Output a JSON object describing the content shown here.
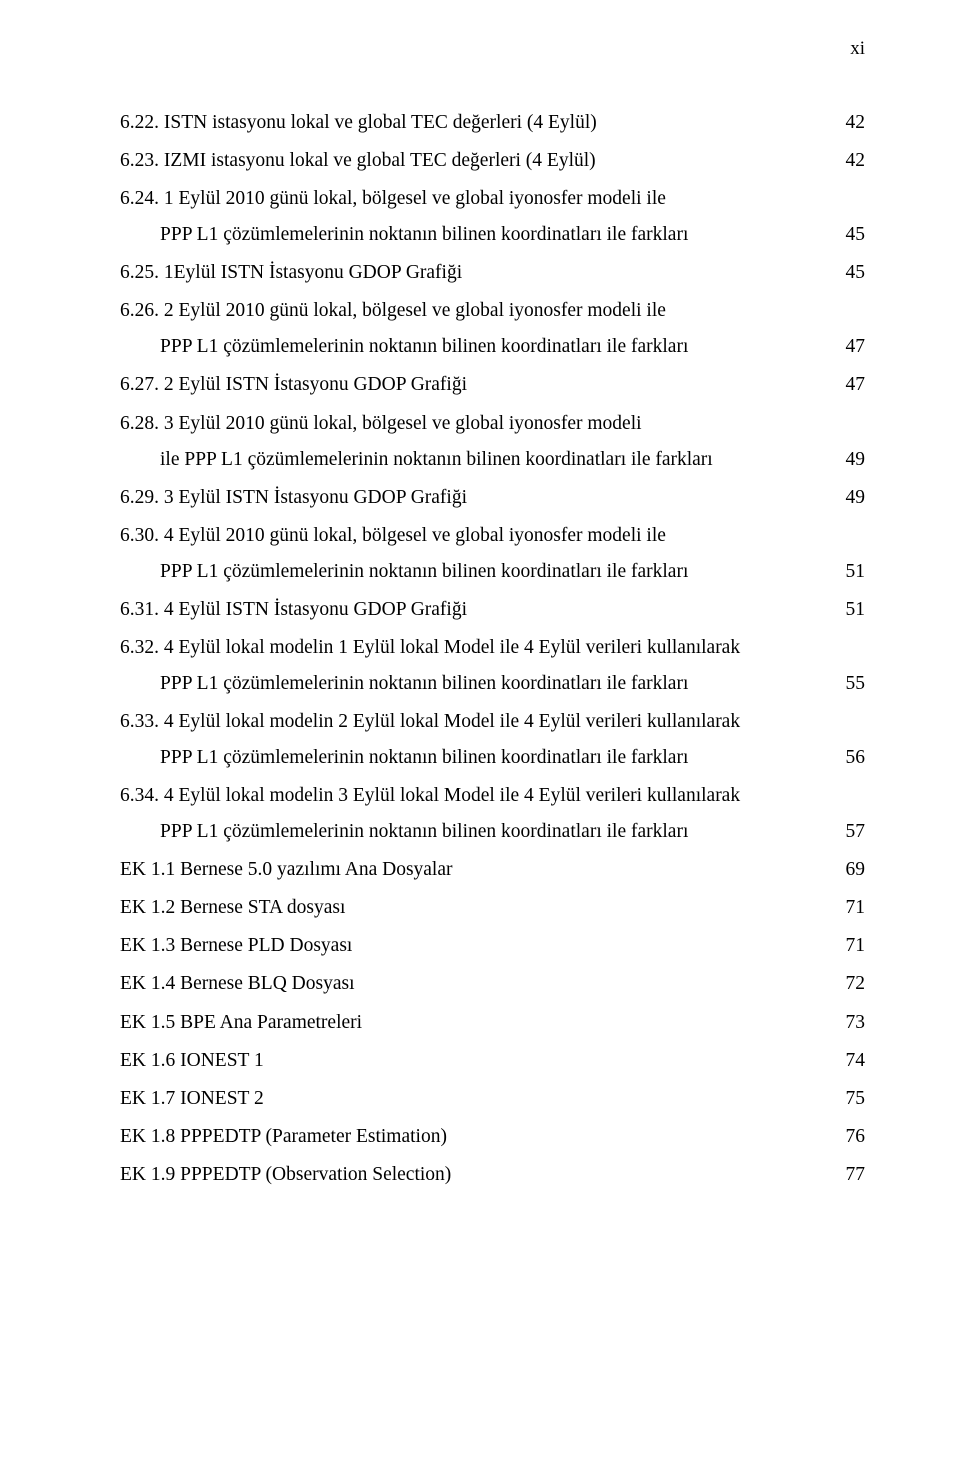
{
  "page_number_label": "xi",
  "text_color": "#000000",
  "background_color": "#ffffff",
  "font_family": "Times New Roman",
  "font_size_pt": 15,
  "entries": [
    {
      "id": "e622",
      "type": "single",
      "text": "6.22. ISTN istasyonu lokal ve global TEC değerleri (4 Eylül)",
      "page": "42"
    },
    {
      "id": "e623",
      "type": "single",
      "text": "6.23. IZMI istasyonu lokal ve global TEC değerleri (4 Eylül)",
      "page": "42"
    },
    {
      "id": "e624",
      "type": "multi",
      "line1": "6.24. 1 Eylül 2010 günü lokal, bölgesel ve global iyonosfer modeli ile",
      "line2": "PPP L1 çözümlemelerinin noktanın bilinen koordinatları ile farkları",
      "page": "45"
    },
    {
      "id": "e625",
      "type": "single",
      "text": "6.25. 1Eylül ISTN İstasyonu GDOP Grafiği",
      "page": "45"
    },
    {
      "id": "e626",
      "type": "multi",
      "line1": "6.26. 2 Eylül 2010 günü lokal, bölgesel ve global iyonosfer modeli ile",
      "line2": "PPP L1 çözümlemelerinin noktanın bilinen koordinatları ile farkları",
      "page": "47"
    },
    {
      "id": "e627",
      "type": "single",
      "text": "6.27. 2 Eylül ISTN İstasyonu GDOP Grafiği",
      "page": "47"
    },
    {
      "id": "e628",
      "type": "multi",
      "line1": "6.28. 3 Eylül 2010 günü lokal, bölgesel ve global iyonosfer modeli",
      "line2": "ile PPP L1 çözümlemelerinin noktanın bilinen koordinatları ile farkları",
      "page": "49"
    },
    {
      "id": "e629",
      "type": "single",
      "text": "6.29. 3 Eylül ISTN İstasyonu GDOP Grafiği",
      "page": "49"
    },
    {
      "id": "e630",
      "type": "multi",
      "line1": "6.30. 4 Eylül 2010 günü lokal, bölgesel ve global iyonosfer modeli ile",
      "line2": "PPP L1 çözümlemelerinin noktanın bilinen koordinatları ile farkları",
      "page": "51"
    },
    {
      "id": "e631",
      "type": "single",
      "text": "6.31. 4 Eylül ISTN İstasyonu GDOP Grafiği",
      "page": "51"
    },
    {
      "id": "e632",
      "type": "multi",
      "line1": "6.32. 4 Eylül lokal modelin 1 Eylül lokal Model ile 4 Eylül verileri kullanılarak",
      "line2": "PPP L1 çözümlemelerinin noktanın bilinen koordinatları ile farkları",
      "page": "55"
    },
    {
      "id": "e633",
      "type": "multi",
      "line1": "6.33. 4 Eylül lokal modelin 2 Eylül lokal Model ile 4 Eylül verileri kullanılarak",
      "line2": "PPP L1 çözümlemelerinin noktanın bilinen koordinatları ile farkları",
      "page": "56"
    },
    {
      "id": "e634",
      "type": "multi",
      "line1": "6.34. 4 Eylül lokal modelin 3 Eylül lokal Model ile 4 Eylül verileri kullanılarak",
      "line2": "PPP L1 çözümlemelerinin noktanın bilinen koordinatları ile farkları",
      "page": "57"
    },
    {
      "id": "ek11",
      "type": "single",
      "text": "EK 1.1 Bernese 5.0 yazılımı Ana Dosyalar",
      "page": "69"
    },
    {
      "id": "ek12",
      "type": "single",
      "text": "EK 1.2 Bernese STA dosyası",
      "page": "71"
    },
    {
      "id": "ek13",
      "type": "single",
      "text": "EK 1.3 Bernese PLD Dosyası",
      "page": "71"
    },
    {
      "id": "ek14",
      "type": "single",
      "text": "EK 1.4 Bernese BLQ Dosyası",
      "page": "72"
    },
    {
      "id": "ek15",
      "type": "single",
      "text": "EK 1.5 BPE Ana Parametreleri",
      "page": "73"
    },
    {
      "id": "ek16",
      "type": "single",
      "text": "EK 1.6 IONEST 1",
      "page": "74"
    },
    {
      "id": "ek17",
      "type": "single",
      "text": "EK 1.7 IONEST 2",
      "page": "75"
    },
    {
      "id": "ek18",
      "type": "single",
      "text": "EK 1.8 PPPEDTP (Parameter Estimation)",
      "page": "76"
    },
    {
      "id": "ek19",
      "type": "single",
      "text": "EK 1.9 PPPEDTP (Observation Selection)",
      "page": "77"
    }
  ]
}
